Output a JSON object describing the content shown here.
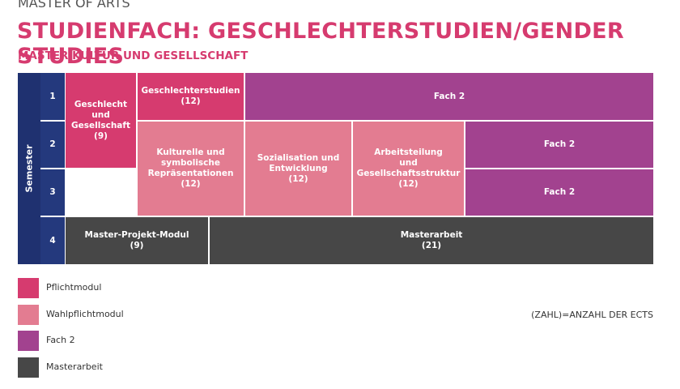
{
  "header": {
    "degree": "MASTER OF ARTS",
    "title": "STUDIENFACH: GESCHLECHTERSTUDIEN/GENDER STUDIES",
    "subtitle": "MASTER KULTUR UND GESELLSCHAFT"
  },
  "grid": {
    "semester_label": "Semester",
    "semesters": [
      "1",
      "2",
      "3",
      "4"
    ],
    "modules": [
      {
        "lines": [
          "Geschlecht",
          "und",
          "Gesellschaft"
        ],
        "ects": "(9)"
      },
      {
        "lines": [
          "Geschlechterstudien"
        ],
        "ects": "(12)"
      },
      {
        "lines": [
          "Fach 2"
        ]
      },
      {
        "lines": [
          "Kulturelle und",
          "symbolische",
          "Repräsentationen"
        ],
        "ects": "(12)"
      },
      {
        "lines": [
          "Sozialisation und",
          "Entwicklung"
        ],
        "ects": "(12)"
      },
      {
        "lines": [
          "Arbeitsteilung",
          "und",
          "Gesellschaftsstruktur"
        ],
        "ects": "(12)"
      },
      {
        "lines": [
          "Fach 2"
        ]
      },
      {
        "lines": [
          "Fach 2"
        ]
      },
      {
        "lines": [
          "Master-Projekt-Modul"
        ],
        "ects": "(9)"
      },
      {
        "lines": [
          "Masterarbeit"
        ],
        "ects": "(21)"
      }
    ]
  },
  "legend": [
    "Pflichtmodul",
    "Wahlpflichtmodul",
    "Fach 2",
    "Masterarbeit"
  ],
  "note": "(ZAHL)=ANZAHL DER ECTS"
}
